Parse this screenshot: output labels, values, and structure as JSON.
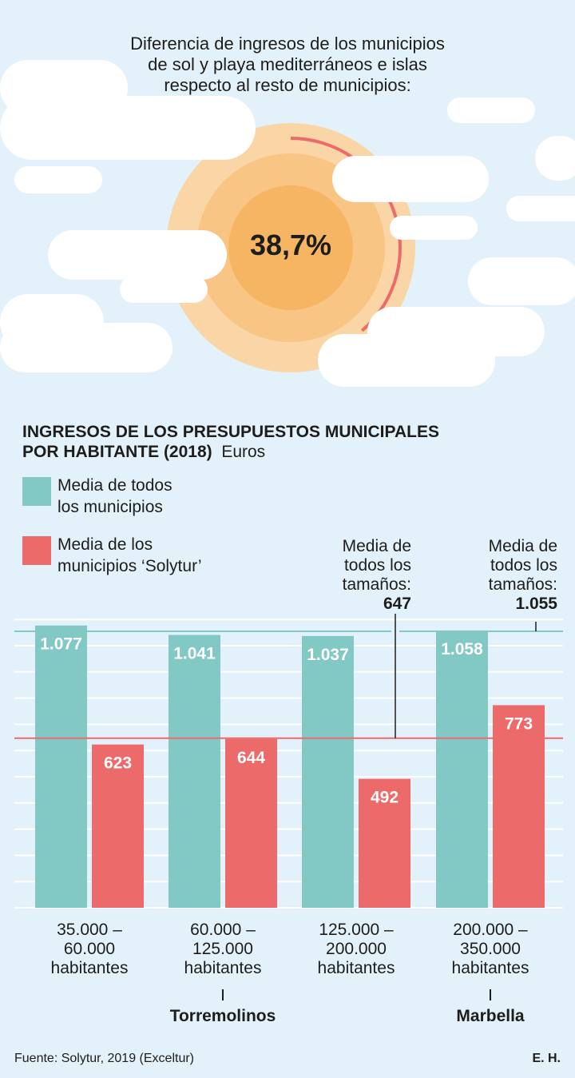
{
  "header": {
    "title_lines": [
      "Diferencia de ingresos de los municipios",
      "de sol y playa mediterráneos e islas",
      "respecto al resto de municipios:"
    ],
    "percentage_label": "38,7%",
    "percentage_value": 38.7
  },
  "colors": {
    "background": "#e3f2fa",
    "teal": "#82c9c6",
    "red": "#ec6b6a",
    "sun_outer": "#fad5a5",
    "sun_mid": "#f8c584",
    "sun_inner": "#f6b562"
  },
  "chart_data": {
    "type": "bar",
    "title": "INGRESOS DE LOS PRESUPUESTOS MUNICIPALES POR HABITANTE (2018)",
    "title_lines": [
      "INGRESOS DE LOS PRESUPUESTOS MUNICIPALES",
      "POR HABITANTE (2018)"
    ],
    "unit": "Euros",
    "categories": [
      [
        "35.000 –",
        "60.000",
        "habitantes"
      ],
      [
        "60.000 –",
        "125.000",
        "habitantes"
      ],
      [
        "125.000 –",
        "200.000",
        "habitantes"
      ],
      [
        "200.000 –",
        "350.000",
        "habitantes"
      ]
    ],
    "series": [
      {
        "name": "Media de todos los municipios",
        "legend_lines": [
          "Media de todos",
          "los municipios"
        ],
        "values": [
          1077,
          1041,
          1037,
          1058
        ],
        "labels": [
          "1.077",
          "1.041",
          "1.037",
          "1.058"
        ],
        "color": "#82c9c6"
      },
      {
        "name": "Media de los municipios ‘Solytur’",
        "legend_lines": [
          "Media de los",
          "municipios ‘Solytur’"
        ],
        "values": [
          623,
          644,
          492,
          773
        ],
        "labels": [
          "623",
          "644",
          "492",
          "773"
        ],
        "color": "#ec6b6a"
      }
    ],
    "reference_lines": [
      {
        "value": 647,
        "color": "#ec6b6a",
        "note_lines": [
          "Media de",
          "todos los",
          "tamaños:"
        ],
        "value_label": "647"
      },
      {
        "value": 1055,
        "color": "#82c9c6",
        "note_lines": [
          "Media de",
          "todos los",
          "tamaños:"
        ],
        "value_label": "1.055"
      }
    ],
    "ylim": [
      0,
      1100
    ],
    "grid": true,
    "highlights": [
      {
        "category_index": 1,
        "label": "Torremolinos"
      },
      {
        "category_index": 3,
        "label": "Marbella"
      }
    ]
  },
  "footer": {
    "source": "Fuente: Solytur, 2019 (Exceltur)",
    "credit": "E. H."
  }
}
